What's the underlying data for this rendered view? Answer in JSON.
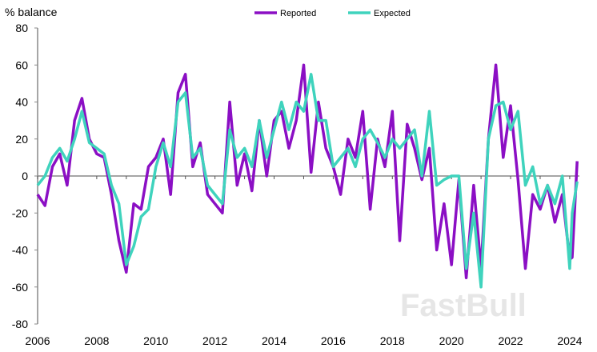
{
  "chart_data": {
    "type": "line",
    "ylabel": "% balance",
    "ylim": [
      -80,
      80
    ],
    "yticks": [
      80,
      60,
      40,
      20,
      0,
      -20,
      -40,
      -60,
      -80
    ],
    "xticks": [
      "2006",
      "2008",
      "2010",
      "2012",
      "2014",
      "2016",
      "2018",
      "2020",
      "2022",
      "2024"
    ],
    "xlim": [
      "2006-01",
      "2024-04"
    ],
    "grid": false,
    "legend_position": "top-center",
    "x": [
      "2006-01",
      "2006-04",
      "2006-07",
      "2006-10",
      "2007-01",
      "2007-04",
      "2007-07",
      "2007-10",
      "2008-01",
      "2008-04",
      "2008-07",
      "2008-10",
      "2009-01",
      "2009-04",
      "2009-07",
      "2009-10",
      "2010-01",
      "2010-04",
      "2010-07",
      "2010-10",
      "2011-01",
      "2011-04",
      "2011-07",
      "2011-10",
      "2012-01",
      "2012-04",
      "2012-07",
      "2012-10",
      "2013-01",
      "2013-04",
      "2013-07",
      "2013-10",
      "2014-01",
      "2014-04",
      "2014-07",
      "2014-10",
      "2015-01",
      "2015-04",
      "2015-07",
      "2015-10",
      "2016-01",
      "2016-04",
      "2016-07",
      "2016-10",
      "2017-01",
      "2017-04",
      "2017-07",
      "2017-10",
      "2018-01",
      "2018-04",
      "2018-07",
      "2018-10",
      "2019-01",
      "2019-04",
      "2019-07",
      "2019-10",
      "2020-01",
      "2020-04",
      "2020-07",
      "2020-10",
      "2021-01",
      "2021-04",
      "2021-07",
      "2021-10",
      "2022-01",
      "2022-04",
      "2022-07",
      "2022-10",
      "2023-01",
      "2023-04",
      "2023-07",
      "2023-10",
      "2024-01",
      "2024-02",
      "2024-04"
    ],
    "series": [
      {
        "name": "Reported",
        "color": "#8b0fc4",
        "values": [
          -10,
          -16,
          5,
          12,
          -5,
          30,
          42,
          20,
          12,
          10,
          -10,
          -35,
          -52,
          -15,
          -18,
          5,
          10,
          20,
          -10,
          45,
          55,
          5,
          18,
          -10,
          -15,
          -20,
          40,
          -5,
          12,
          -8,
          30,
          0,
          30,
          35,
          15,
          30,
          60,
          2,
          40,
          15,
          5,
          -10,
          20,
          10,
          35,
          -18,
          20,
          5,
          35,
          -35,
          28,
          15,
          -2,
          15,
          -40,
          -15,
          -48,
          -2,
          -55,
          -5,
          -50,
          20,
          60,
          10,
          38,
          -2,
          -50,
          -10,
          -18,
          -5,
          -25,
          -10,
          -45,
          -44,
          8
        ]
      },
      {
        "name": "Expected",
        "color": "#3fd3bd",
        "values": [
          -5,
          0,
          10,
          15,
          8,
          20,
          35,
          18,
          15,
          12,
          -5,
          -15,
          -48,
          -38,
          -22,
          -18,
          5,
          18,
          5,
          40,
          45,
          10,
          15,
          -5,
          -10,
          -15,
          25,
          10,
          15,
          5,
          30,
          10,
          25,
          40,
          25,
          40,
          35,
          55,
          30,
          30,
          5,
          10,
          15,
          5,
          20,
          25,
          18,
          10,
          20,
          15,
          20,
          25,
          0,
          35,
          -5,
          -2,
          0,
          0,
          -50,
          -20,
          -60,
          20,
          38,
          40,
          25,
          35,
          -5,
          5,
          -15,
          -5,
          -15,
          0,
          -50,
          -20,
          -3
        ]
      }
    ]
  },
  "watermark": "FastBull"
}
